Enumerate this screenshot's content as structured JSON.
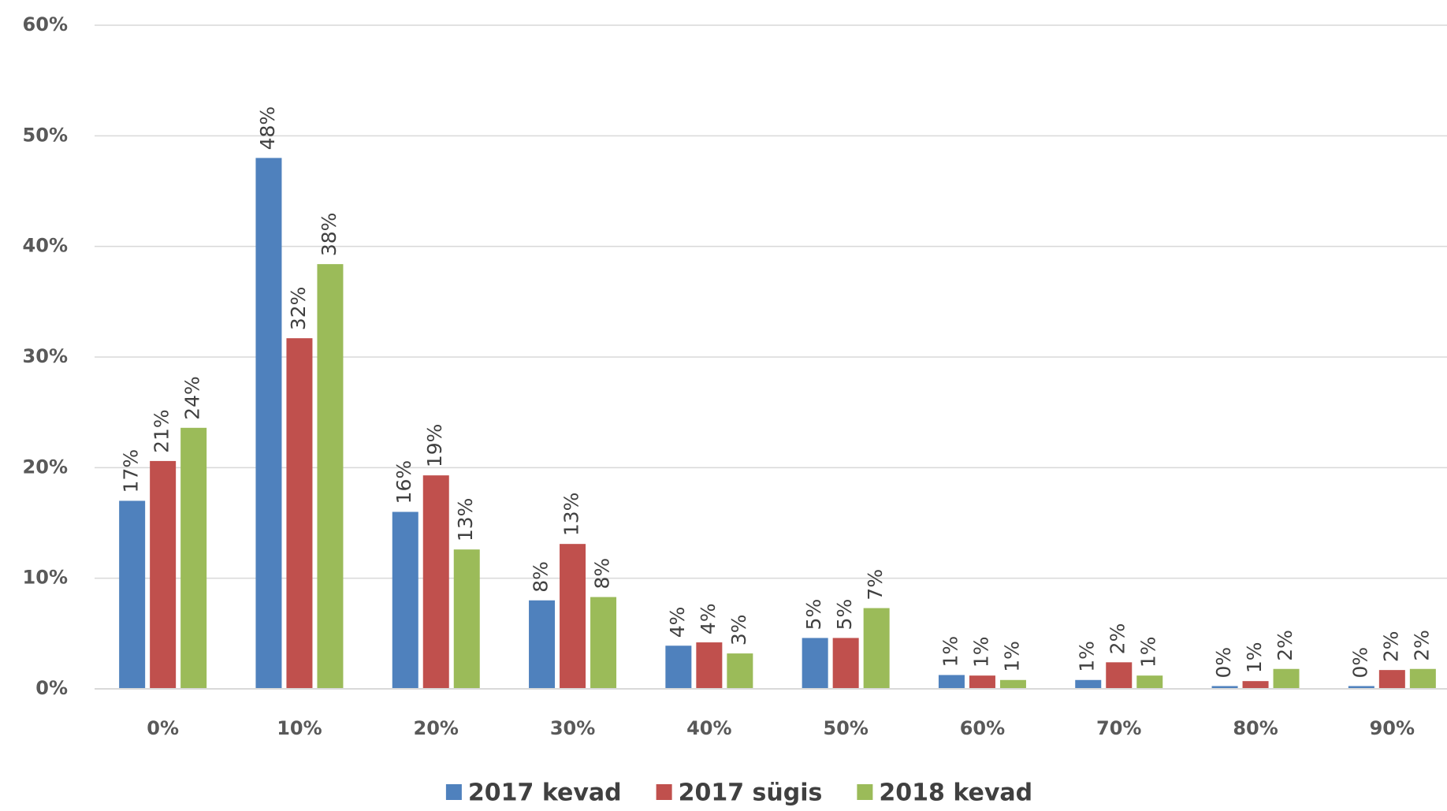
{
  "chart_data": {
    "type": "bar",
    "categories": [
      "0%",
      "10%",
      "20%",
      "30%",
      "40%",
      "50%",
      "60%",
      "70%",
      "80%",
      "90%"
    ],
    "series": [
      {
        "name": "2017 kevad",
        "color": "#4f81bd",
        "values": [
          17,
          48,
          16,
          8,
          3.9,
          4.6,
          1.25,
          0.8,
          0.25,
          0.25
        ],
        "value_labels": [
          "17%",
          "48%",
          "16%",
          "8%",
          "4%",
          "5%",
          "1%",
          "1%",
          "0%",
          "0%"
        ]
      },
      {
        "name": "2017 sügis",
        "color": "#c0504d",
        "values": [
          20.6,
          31.7,
          19.3,
          13.1,
          4.2,
          4.6,
          1.2,
          2.4,
          0.7,
          1.7
        ],
        "value_labels": [
          "21%",
          "32%",
          "19%",
          "13%",
          "4%",
          "5%",
          "1%",
          "2%",
          "1%",
          "2%"
        ]
      },
      {
        "name": "2018 kevad",
        "color": "#9bbb59",
        "values": [
          23.6,
          38.4,
          12.6,
          8.3,
          3.2,
          7.3,
          0.8,
          1.2,
          1.8,
          1.8
        ],
        "value_labels": [
          "24%",
          "38%",
          "13%",
          "8%",
          "3%",
          "7%",
          "1%",
          "1%",
          "2%",
          "2%"
        ]
      }
    ],
    "ylim": [
      0,
      60
    ],
    "yticks": [
      {
        "value": 0,
        "label": "0%"
      },
      {
        "value": 10,
        "label": "10%"
      },
      {
        "value": 20,
        "label": "20%"
      },
      {
        "value": 30,
        "label": "30%"
      },
      {
        "value": 40,
        "label": "40%"
      },
      {
        "value": 50,
        "label": "50%"
      },
      {
        "value": 60,
        "label": "60%"
      }
    ],
    "grid": true,
    "legend": "bottom"
  }
}
